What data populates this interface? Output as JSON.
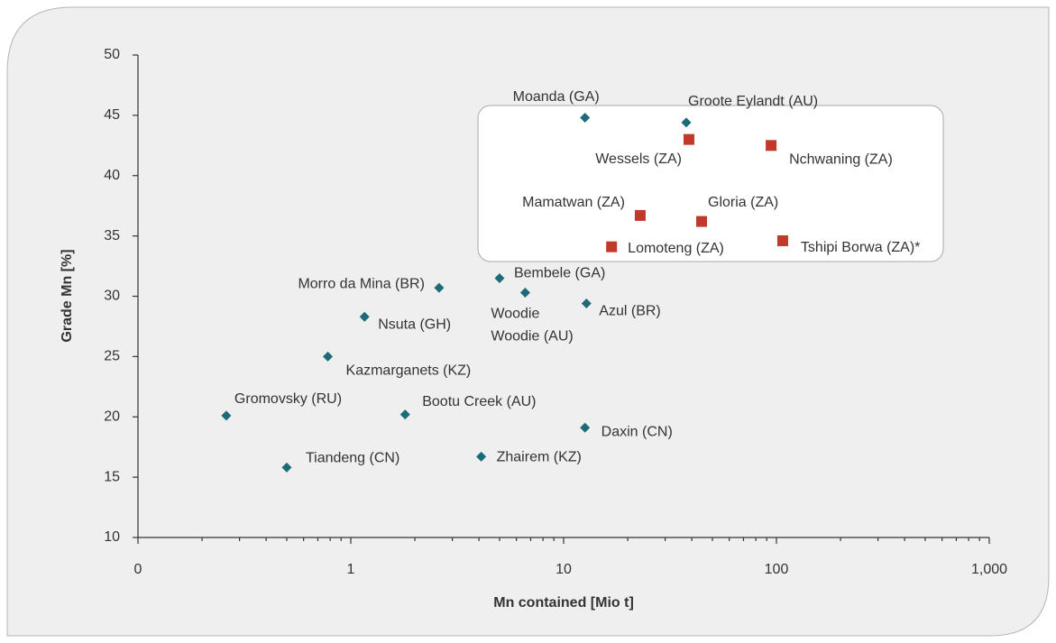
{
  "chart_data": {
    "type": "scatter",
    "xlabel": "Mn contained [Mio t]",
    "ylabel": "Grade Mn [%]",
    "xscale": "log",
    "xlim": [
      0.1,
      1000
    ],
    "xticks": [
      {
        "value": 0.1,
        "label": "0"
      },
      1,
      10,
      100,
      {
        "value": 1000,
        "label": "1,000"
      }
    ],
    "ylim": [
      10,
      50
    ],
    "yticks": [
      10,
      15,
      20,
      25,
      30,
      35,
      40,
      45,
      50
    ],
    "series": [
      {
        "color": "#1d6a78",
        "marker": "diamond",
        "x": [
          12.6,
          37.7,
          2.6,
          5.0,
          6.6,
          12.8,
          1.16,
          0.78,
          0.26,
          1.8,
          12.6,
          0.5,
          4.1
        ],
        "values": [
          44.8,
          44.4,
          30.7,
          31.5,
          30.3,
          29.4,
          28.3,
          25.0,
          20.1,
          20.2,
          19.1,
          15.8,
          16.7
        ],
        "labels": [
          "Moanda (GA)",
          "Groote Eylandt (AU)",
          "Morro da Mina (BR)",
          "Bembele (GA)",
          "Woodie Woodie (AU)",
          "Azul (BR)",
          "Nsuta (GH)",
          "Kazmarganets (KZ)",
          "Gromovsky (RU)",
          "Bootu Creek (AU)",
          "Daxin (CN)",
          "Tiandeng (CN)",
          "Zhairem (KZ)"
        ]
      },
      {
        "color": "#c0392b",
        "marker": "square",
        "x": [
          38.8,
          94.4,
          22.9,
          44.5,
          16.8,
          107
        ],
        "values": [
          43.0,
          42.5,
          36.7,
          36.2,
          34.1,
          34.6
        ],
        "labels": [
          "Wessels (ZA)",
          "Nchwaning (ZA)",
          "Mamatwan (ZA)",
          "Gloria (ZA)",
          "Lomoteng (ZA)",
          "Tshipi Borwa (ZA)*"
        ]
      }
    ]
  }
}
